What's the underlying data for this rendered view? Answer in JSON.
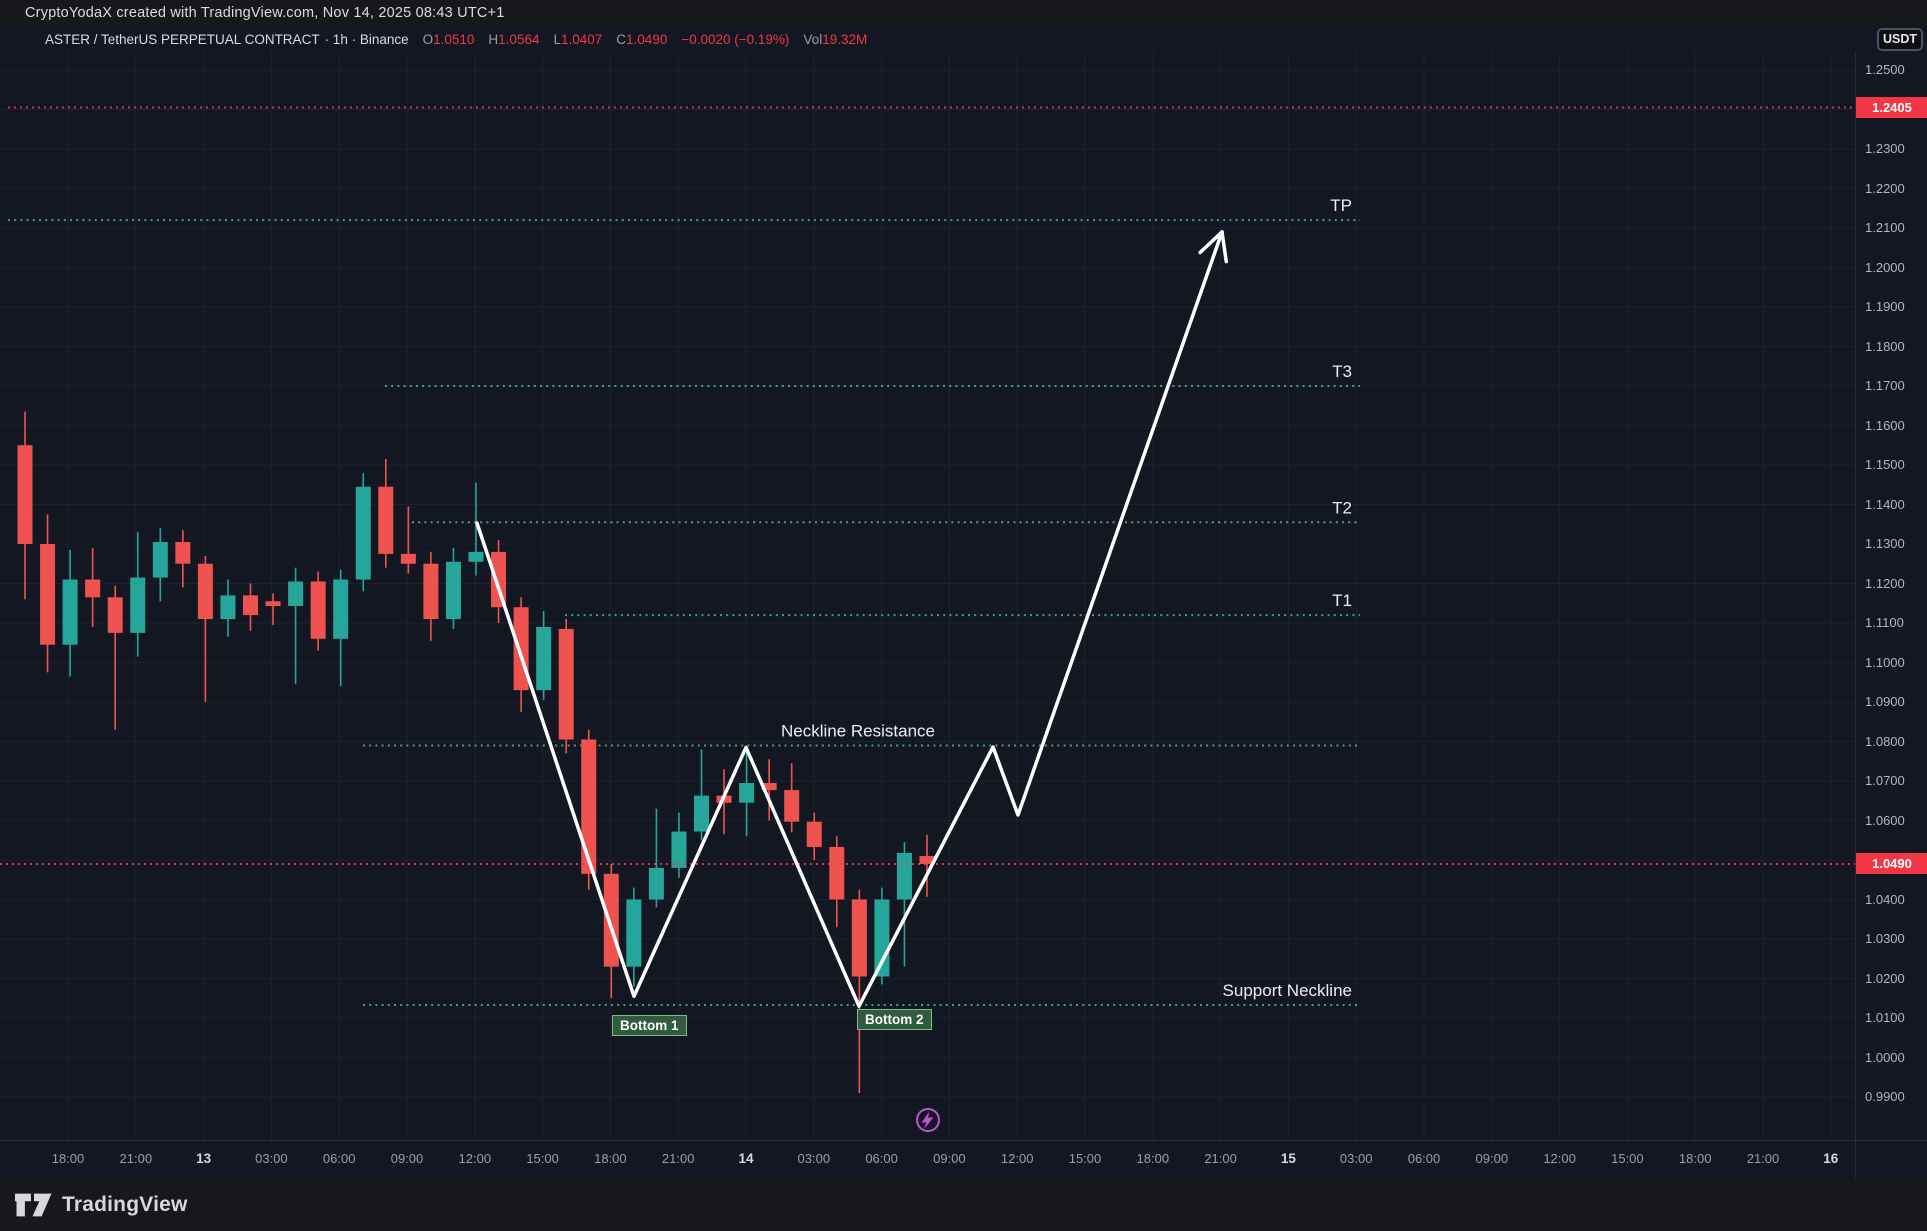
{
  "topbar": {
    "watermark": "CryptoYodaX created with TradingView.com, Nov 14, 2025 08:43 UTC+1"
  },
  "symbol_row": {
    "title": "ASTER / TetherUS PERPETUAL CONTRACT",
    "interval_exchange": "· 1h · Binance",
    "o_label": "O",
    "o": "1.0510",
    "h_label": "H",
    "h": "1.0564",
    "l_label": "L",
    "l": "1.0407",
    "c_label": "C",
    "c": "1.0490",
    "change": "−0.0020 (−0.19%)",
    "vol_label": "Vol",
    "vol": "19.32M",
    "quote_button": "USDT"
  },
  "colors": {
    "background": "#131722",
    "up_candle": "#26a69a",
    "down_candle": "#ef5350",
    "target_line_green": "#4f9e72",
    "alert_line_red": "#f23645",
    "price_tag_bg": "#f23645",
    "zigzag_white": "#ffffff",
    "grid": "#1c2130",
    "axis_text": "#b2b5be",
    "lightning_purple": "#c050d8",
    "pattern_label_bg": "#2f5c3f",
    "pattern_label_border": "#84b78c"
  },
  "chart_data": {
    "type": "candlestick",
    "title": "ASTER/USDT Perpetual 1h - double bottom pattern with projected targets",
    "price_axis": {
      "min": 0.99,
      "max": 1.25,
      "step": 0.01,
      "ticks": [
        "1.2500",
        "1.2400",
        "1.2300",
        "1.2200",
        "1.2100",
        "1.2000",
        "1.1900",
        "1.1800",
        "1.1700",
        "1.1600",
        "1.1500",
        "1.1400",
        "1.1300",
        "1.1200",
        "1.1100",
        "1.1000",
        "1.0900",
        "1.0800",
        "1.0700",
        "1.0600",
        "1.0500",
        "1.0400",
        "1.0300",
        "1.0200",
        "1.0100",
        "1.0000",
        "0.9900"
      ]
    },
    "time_axis": {
      "labels": [
        "18:00",
        "21:00",
        "13",
        "03:00",
        "06:00",
        "09:00",
        "12:00",
        "15:00",
        "18:00",
        "21:00",
        "14",
        "03:00",
        "06:00",
        "09:00",
        "12:00",
        "15:00",
        "18:00",
        "21:00",
        "15",
        "03:00",
        "06:00",
        "09:00",
        "12:00",
        "15:00",
        "18:00",
        "21:00",
        "16"
      ]
    },
    "candles_format": [
      "open",
      "high",
      "low",
      "close"
    ],
    "candles": [
      [
        1.155,
        1.1635,
        1.116,
        1.13
      ],
      [
        1.13,
        1.1375,
        1.0975,
        1.1045
      ],
      [
        1.1045,
        1.1285,
        1.0965,
        1.121
      ],
      [
        1.121,
        1.129,
        1.109,
        1.1165
      ],
      [
        1.1165,
        1.1195,
        1.083,
        1.1075
      ],
      [
        1.1075,
        1.133,
        1.1015,
        1.1215
      ],
      [
        1.1215,
        1.134,
        1.1155,
        1.1305
      ],
      [
        1.1305,
        1.1335,
        1.119,
        1.125
      ],
      [
        1.125,
        1.127,
        1.09,
        1.111
      ],
      [
        1.111,
        1.121,
        1.1065,
        1.117
      ],
      [
        1.117,
        1.12,
        1.108,
        1.112
      ],
      [
        1.1155,
        1.1175,
        1.1095,
        1.1143
      ],
      [
        1.1143,
        1.124,
        1.0945,
        1.1205
      ],
      [
        1.1205,
        1.123,
        1.103,
        1.106
      ],
      [
        1.106,
        1.1235,
        1.094,
        1.121
      ],
      [
        1.121,
        1.148,
        1.118,
        1.1445
      ],
      [
        1.1445,
        1.1515,
        1.124,
        1.1275
      ],
      [
        1.1275,
        1.1395,
        1.1225,
        1.125
      ],
      [
        1.125,
        1.128,
        1.1055,
        1.111
      ],
      [
        1.111,
        1.129,
        1.1085,
        1.1255
      ],
      [
        1.1255,
        1.1455,
        1.122,
        1.128
      ],
      [
        1.128,
        1.131,
        1.11,
        1.114
      ],
      [
        1.114,
        1.1165,
        1.0875,
        1.093
      ],
      [
        1.093,
        1.113,
        1.0905,
        1.109
      ],
      [
        1.1085,
        1.111,
        1.077,
        1.0805
      ],
      [
        1.0805,
        1.083,
        1.0425,
        1.0465
      ],
      [
        1.0465,
        1.049,
        1.015,
        1.023
      ],
      [
        1.023,
        1.043,
        1.018,
        1.04
      ],
      [
        1.04,
        1.063,
        1.038,
        1.048
      ],
      [
        1.048,
        1.062,
        1.0455,
        1.0572
      ],
      [
        1.0572,
        1.078,
        1.055,
        1.0663
      ],
      [
        1.0663,
        1.073,
        1.0565,
        1.0645
      ],
      [
        1.0645,
        1.078,
        1.056,
        1.0695
      ],
      [
        1.0695,
        1.0755,
        1.06,
        1.0677
      ],
      [
        1.0677,
        1.0745,
        1.057,
        1.0597
      ],
      [
        1.0597,
        1.062,
        1.05,
        1.0533
      ],
      [
        1.0533,
        1.056,
        1.033,
        1.04
      ],
      [
        1.04,
        1.0425,
        0.991,
        1.0205
      ],
      [
        1.0205,
        1.043,
        1.0185,
        1.04
      ],
      [
        1.04,
        1.0545,
        1.023,
        1.0518
      ],
      [
        1.051,
        1.0564,
        1.0407,
        1.049
      ]
    ],
    "levels": [
      {
        "name": "alert",
        "label": "",
        "price": 1.2405,
        "tag": "1.2405",
        "style": "red"
      },
      {
        "name": "last",
        "label": "",
        "price": 1.049,
        "tag": "1.0490",
        "style": "red"
      },
      {
        "name": "tp",
        "label": "TP",
        "price": 1.212,
        "style": "green"
      },
      {
        "name": "t3",
        "label": "T3",
        "price": 1.17,
        "style": "green"
      },
      {
        "name": "t2",
        "label": "T2",
        "price": 1.1355,
        "style": "green"
      },
      {
        "name": "t1",
        "label": "T1",
        "price": 1.112,
        "style": "green"
      },
      {
        "name": "neckline",
        "label": "Neckline  Resistance",
        "price": 1.079,
        "style": "green"
      },
      {
        "name": "support",
        "label": "Support Neckline",
        "price": 1.0133,
        "style": "green"
      }
    ],
    "pattern_labels": [
      {
        "text": "Bottom 1"
      },
      {
        "text": "Bottom 2"
      }
    ],
    "zigzag": {
      "comment": "white projection line, points as [x_px, price], ends in up-arrow",
      "points": [
        [
          477,
          1.1353
        ],
        [
          634,
          1.0155
        ],
        [
          746,
          1.0785
        ],
        [
          859,
          1.013
        ],
        [
          993,
          1.0786
        ],
        [
          1018,
          1.0614
        ],
        [
          1222,
          1.209
        ]
      ]
    },
    "legend_position": "none",
    "grid": true
  },
  "footer": {
    "logo_text": "TradingView"
  }
}
